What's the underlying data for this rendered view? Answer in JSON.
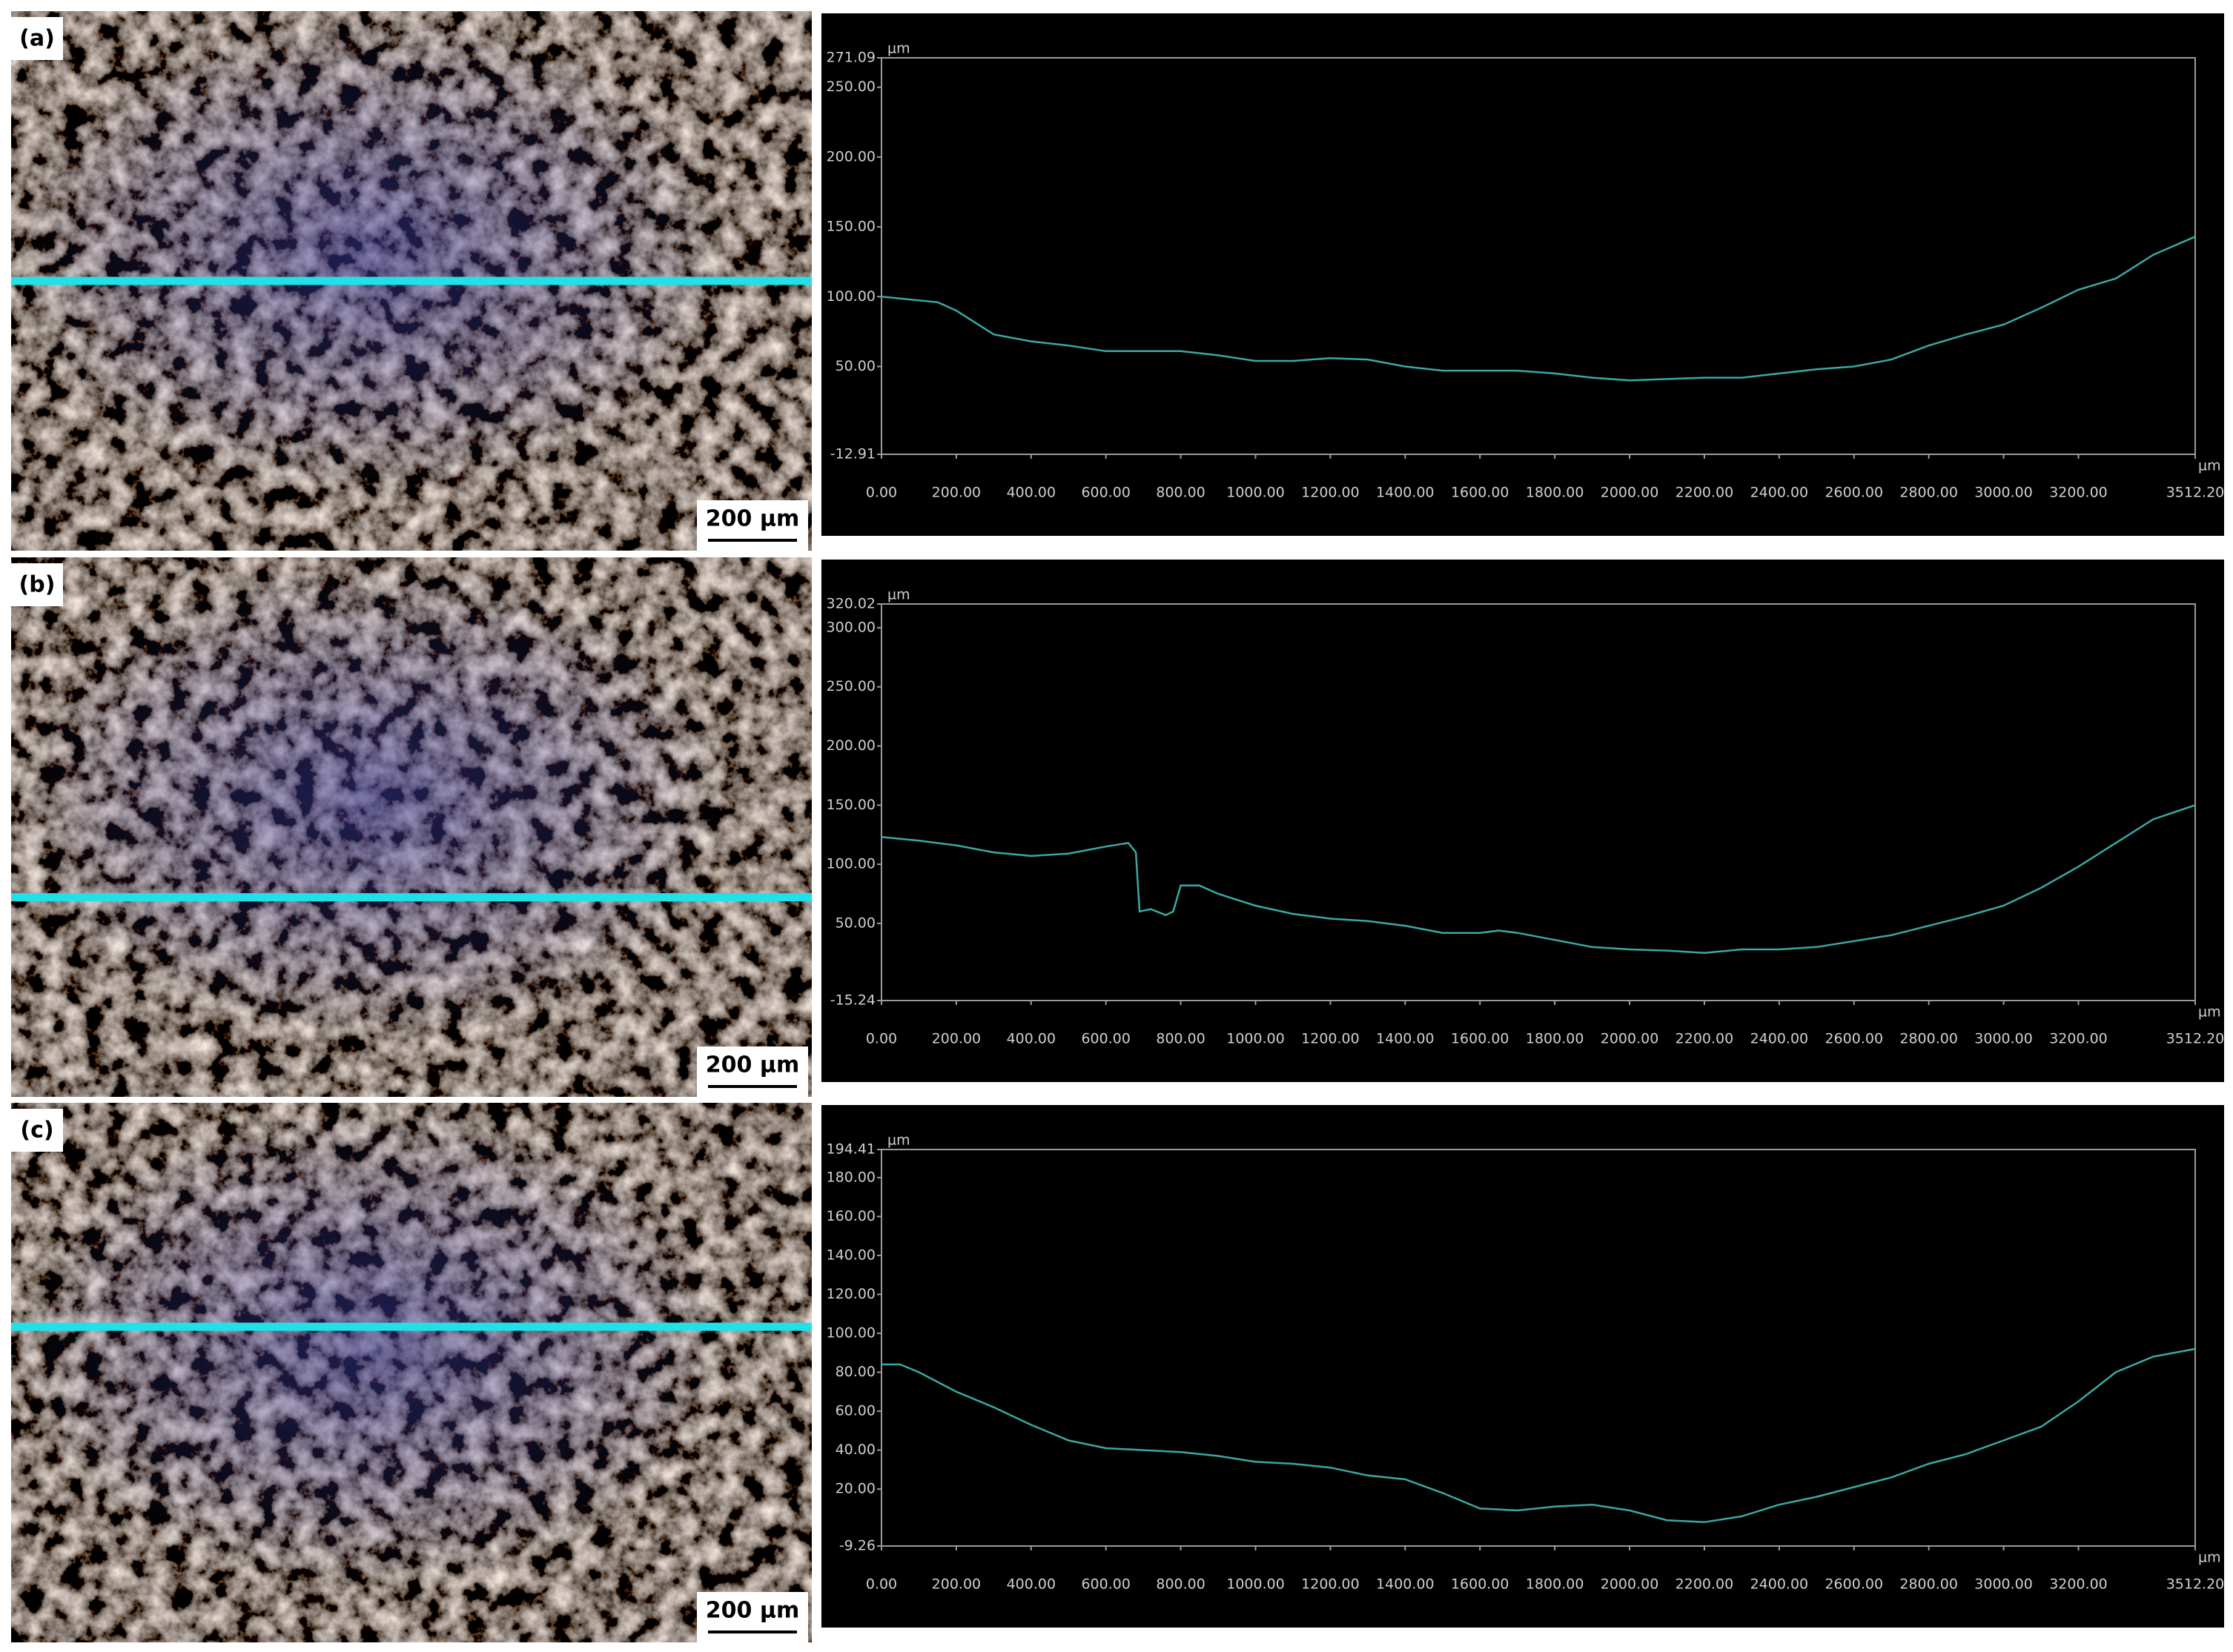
{
  "panels": [
    {
      "label": "(a)",
      "scale_bar": "200 µm"
    },
    {
      "label": "(b)",
      "scale_bar": "200 µm"
    },
    {
      "label": "(c)",
      "scale_bar": "200 µm"
    }
  ],
  "chart_data": [
    {
      "type": "line",
      "ylabel": "µm",
      "xlabel": "µm",
      "color": "#3aa8a4",
      "xlim": [
        0,
        3512.2
      ],
      "ylim": [
        -12.91,
        271.09
      ],
      "yticks": [
        {
          "value": 271.09,
          "label": "271.09"
        },
        {
          "value": 250,
          "label": "250.00"
        },
        {
          "value": 200,
          "label": "200.00"
        },
        {
          "value": 150,
          "label": "150.00"
        },
        {
          "value": 100,
          "label": "100.00"
        },
        {
          "value": 50,
          "label": "50.00"
        },
        {
          "value": -12.91,
          "label": "-12.91"
        }
      ],
      "xticks": [
        {
          "value": 0,
          "label": "0.00"
        },
        {
          "value": 200,
          "label": "200.00"
        },
        {
          "value": 400,
          "label": "400.00"
        },
        {
          "value": 600,
          "label": "600.00"
        },
        {
          "value": 800,
          "label": "800.00"
        },
        {
          "value": 1000,
          "label": "1000.00"
        },
        {
          "value": 1200,
          "label": "1200.00"
        },
        {
          "value": 1400,
          "label": "1400.00"
        },
        {
          "value": 1600,
          "label": "1600.00"
        },
        {
          "value": 1800,
          "label": "1800.00"
        },
        {
          "value": 2000,
          "label": "2000.00"
        },
        {
          "value": 2200,
          "label": "2200.00"
        },
        {
          "value": 2400,
          "label": "2400.00"
        },
        {
          "value": 2600,
          "label": "2600.00"
        },
        {
          "value": 2800,
          "label": "2800.00"
        },
        {
          "value": 3000,
          "label": "3000.00"
        },
        {
          "value": 3200,
          "label": "3200.00"
        },
        {
          "value": 3512.2,
          "label": "3512.20"
        }
      ],
      "x": [
        0,
        150,
        200,
        300,
        400,
        500,
        600,
        700,
        800,
        900,
        1000,
        1100,
        1200,
        1300,
        1400,
        1500,
        1600,
        1700,
        1800,
        1900,
        2000,
        2100,
        2200,
        2300,
        2400,
        2500,
        2600,
        2700,
        2800,
        2900,
        3000,
        3100,
        3200,
        3300,
        3400,
        3512.2
      ],
      "values": [
        100,
        96,
        90,
        73,
        68,
        65,
        61,
        61,
        61,
        58,
        54,
        54,
        56,
        55,
        50,
        47,
        47,
        47,
        45,
        42,
        40,
        41,
        42,
        42,
        45,
        48,
        50,
        55,
        65,
        73,
        80,
        92,
        105,
        113,
        130,
        143
      ]
    },
    {
      "type": "line",
      "ylabel": "µm",
      "xlabel": "µm",
      "color": "#3aa8a4",
      "xlim": [
        0,
        3512.2
      ],
      "ylim": [
        -15.24,
        320.02
      ],
      "yticks": [
        {
          "value": 320.02,
          "label": "320.02"
        },
        {
          "value": 300,
          "label": "300.00"
        },
        {
          "value": 250,
          "label": "250.00"
        },
        {
          "value": 200,
          "label": "200.00"
        },
        {
          "value": 150,
          "label": "150.00"
        },
        {
          "value": 100,
          "label": "100.00"
        },
        {
          "value": 50,
          "label": "50.00"
        },
        {
          "value": -15.24,
          "label": "-15.24"
        }
      ],
      "xticks": [
        {
          "value": 0,
          "label": "0.00"
        },
        {
          "value": 200,
          "label": "200.00"
        },
        {
          "value": 400,
          "label": "400.00"
        },
        {
          "value": 600,
          "label": "600.00"
        },
        {
          "value": 800,
          "label": "800.00"
        },
        {
          "value": 1000,
          "label": "1000.00"
        },
        {
          "value": 1200,
          "label": "1200.00"
        },
        {
          "value": 1400,
          "label": "1400.00"
        },
        {
          "value": 1600,
          "label": "1600.00"
        },
        {
          "value": 1800,
          "label": "1800.00"
        },
        {
          "value": 2000,
          "label": "2000.00"
        },
        {
          "value": 2200,
          "label": "2200.00"
        },
        {
          "value": 2400,
          "label": "2400.00"
        },
        {
          "value": 2600,
          "label": "2600.00"
        },
        {
          "value": 2800,
          "label": "2800.00"
        },
        {
          "value": 3000,
          "label": "3000.00"
        },
        {
          "value": 3200,
          "label": "3200.00"
        },
        {
          "value": 3512.2,
          "label": "3512.20"
        }
      ],
      "x": [
        0,
        100,
        200,
        300,
        400,
        500,
        600,
        660,
        680,
        690,
        720,
        760,
        780,
        800,
        850,
        900,
        1000,
        1100,
        1200,
        1300,
        1400,
        1500,
        1600,
        1650,
        1700,
        1800,
        1900,
        2000,
        2100,
        2200,
        2300,
        2400,
        2500,
        2600,
        2700,
        2800,
        2900,
        3000,
        3100,
        3200,
        3300,
        3400,
        3512.2
      ],
      "values": [
        123,
        120,
        116,
        110,
        107,
        109,
        115,
        118,
        110,
        60,
        62,
        57,
        60,
        82,
        82,
        75,
        65,
        58,
        54,
        52,
        48,
        42,
        42,
        44,
        42,
        36,
        30,
        28,
        27,
        25,
        28,
        28,
        30,
        35,
        40,
        48,
        56,
        65,
        80,
        98,
        118,
        138,
        150
      ]
    },
    {
      "type": "line",
      "ylabel": "µm",
      "xlabel": "µm",
      "color": "#3aa8a4",
      "xlim": [
        0,
        3512.2
      ],
      "ylim": [
        -9.26,
        194.41
      ],
      "yticks": [
        {
          "value": 194.41,
          "label": "194.41"
        },
        {
          "value": 180,
          "label": "180.00"
        },
        {
          "value": 160,
          "label": "160.00"
        },
        {
          "value": 140,
          "label": "140.00"
        },
        {
          "value": 120,
          "label": "120.00"
        },
        {
          "value": 100,
          "label": "100.00"
        },
        {
          "value": 80,
          "label": "80.00"
        },
        {
          "value": 60,
          "label": "60.00"
        },
        {
          "value": 40,
          "label": "40.00"
        },
        {
          "value": 20,
          "label": "20.00"
        },
        {
          "value": -9.26,
          "label": "-9.26"
        }
      ],
      "xticks": [
        {
          "value": 0,
          "label": "0.00"
        },
        {
          "value": 200,
          "label": "200.00"
        },
        {
          "value": 400,
          "label": "400.00"
        },
        {
          "value": 600,
          "label": "600.00"
        },
        {
          "value": 800,
          "label": "800.00"
        },
        {
          "value": 1000,
          "label": "1000.00"
        },
        {
          "value": 1200,
          "label": "1200.00"
        },
        {
          "value": 1400,
          "label": "1400.00"
        },
        {
          "value": 1600,
          "label": "1600.00"
        },
        {
          "value": 1800,
          "label": "1800.00"
        },
        {
          "value": 2000,
          "label": "2000.00"
        },
        {
          "value": 2200,
          "label": "2200.00"
        },
        {
          "value": 2400,
          "label": "2400.00"
        },
        {
          "value": 2600,
          "label": "2600.00"
        },
        {
          "value": 2800,
          "label": "2800.00"
        },
        {
          "value": 3000,
          "label": "3000.00"
        },
        {
          "value": 3200,
          "label": "3200.00"
        },
        {
          "value": 3512.2,
          "label": "3512.20"
        }
      ],
      "x": [
        0,
        50,
        100,
        200,
        300,
        400,
        500,
        600,
        700,
        800,
        900,
        1000,
        1100,
        1200,
        1300,
        1400,
        1500,
        1600,
        1700,
        1800,
        1900,
        2000,
        2100,
        2200,
        2300,
        2400,
        2500,
        2600,
        2700,
        2800,
        2900,
        3000,
        3100,
        3200,
        3300,
        3400,
        3512.2
      ],
      "values": [
        84,
        84,
        80,
        70,
        62,
        53,
        45,
        41,
        40,
        39,
        37,
        34,
        33,
        31,
        27,
        25,
        18,
        10,
        9,
        11,
        12,
        9,
        4,
        3,
        6,
        12,
        16,
        21,
        26,
        33,
        38,
        45,
        52,
        65,
        80,
        88,
        92
      ]
    }
  ]
}
